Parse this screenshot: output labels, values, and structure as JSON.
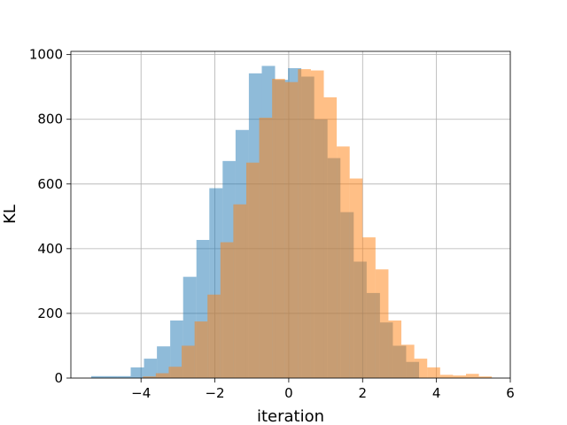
{
  "chart_data": {
    "type": "bar",
    "title": "",
    "xlabel": "iteration",
    "ylabel": "KL",
    "xlim": [
      -5.9,
      6.0
    ],
    "ylim": [
      0,
      1010
    ],
    "xticks": [
      -4,
      -2,
      0,
      2,
      4,
      6
    ],
    "xtick_labels": [
      "−4",
      "−2",
      "0",
      "2",
      "4",
      "6"
    ],
    "yticks": [
      0,
      200,
      400,
      600,
      800,
      1000
    ],
    "ytick_labels": [
      "0",
      "200",
      "400",
      "600",
      "800",
      "1000"
    ],
    "grid": true,
    "legend": "none",
    "series": [
      {
        "color": "#1f77b4",
        "opacity": 0.5,
        "bin_edges": [
          -5.35,
          -4.99,
          -4.63,
          -4.28,
          -3.92,
          -3.57,
          -3.21,
          -2.86,
          -2.5,
          -2.15,
          -1.79,
          -1.44,
          -1.08,
          -0.73,
          -0.37,
          -0.02,
          0.34,
          0.69,
          1.05,
          1.4,
          1.76,
          2.11,
          2.47,
          2.82,
          3.18,
          3.53
        ],
        "counts": [
          6,
          6,
          6,
          33,
          60,
          98,
          178,
          313,
          427,
          587,
          671,
          767,
          942,
          965,
          922,
          958,
          932,
          800,
          680,
          513,
          360,
          263,
          172,
          100,
          50
        ]
      },
      {
        "color": "#ff7f0e",
        "opacity": 0.5,
        "bin_edges": [
          -3.95,
          -3.6,
          -3.25,
          -2.9,
          -2.55,
          -2.2,
          -1.85,
          -1.5,
          -1.15,
          -0.8,
          -0.45,
          -0.1,
          0.25,
          0.6,
          0.95,
          1.3,
          1.65,
          2.0,
          2.35,
          2.7,
          3.05,
          3.4,
          3.75,
          4.1,
          4.45,
          4.8,
          5.15,
          5.5
        ],
        "counts": [
          5,
          15,
          35,
          100,
          175,
          258,
          420,
          537,
          666,
          805,
          925,
          915,
          955,
          951,
          868,
          716,
          617,
          435,
          336,
          178,
          103,
          60,
          33,
          10,
          8,
          13,
          5
        ]
      }
    ]
  }
}
